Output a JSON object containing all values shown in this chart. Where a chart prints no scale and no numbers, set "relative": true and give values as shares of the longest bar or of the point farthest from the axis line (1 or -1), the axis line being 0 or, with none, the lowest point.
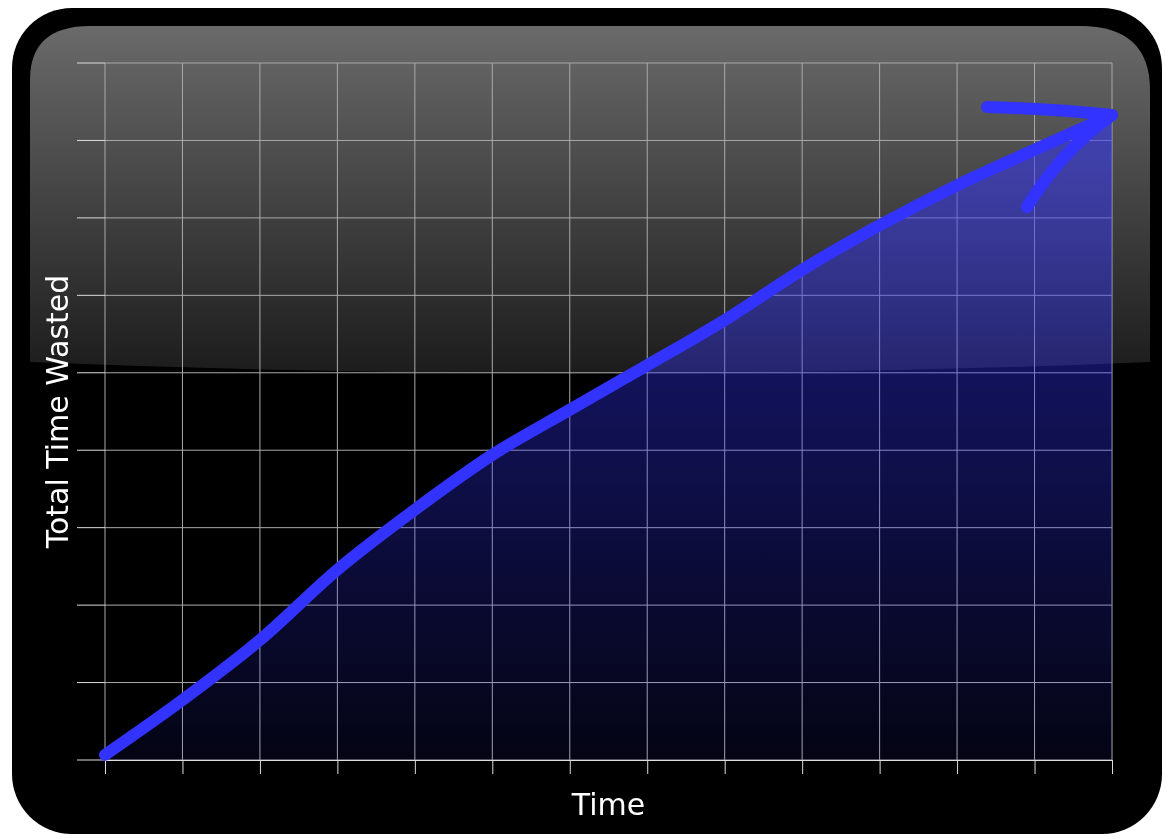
{
  "chart_data": {
    "type": "area",
    "relative": true,
    "xlabel": "Time",
    "ylabel": "Total Time Wasted",
    "categories": [
      null,
      null,
      null,
      null,
      null,
      null,
      null,
      null,
      null,
      null,
      null,
      null,
      null,
      null
    ],
    "series": [
      {
        "color": "#3333ff",
        "values": [
          0.008,
          0.093,
          0.186,
          0.295,
          0.388,
          0.473,
          0.543,
          0.612,
          0.682,
          0.76,
          0.829,
          0.891,
          0.946,
          1
        ]
      }
    ],
    "grid": true,
    "marker": "none",
    "line_style": "solid"
  }
}
